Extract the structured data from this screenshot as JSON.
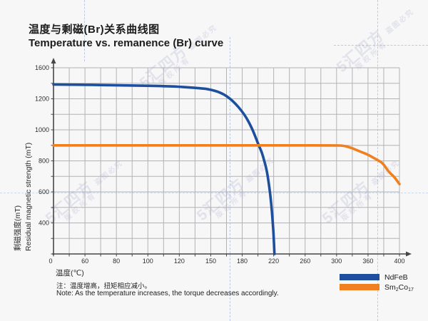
{
  "title": {
    "zh": "温度与剩磁(Br)关系曲线图",
    "en": "Temperature vs. remanence (Br) curve"
  },
  "y_axis": {
    "label_zh": "剩磁强度(mT)",
    "label_en": "Residual magnetic strength (mT)"
  },
  "x_axis": {
    "label": "温度(℃)"
  },
  "note": {
    "zh": "注：温度增高，扭矩相应减小。",
    "en": "Note: As the temperature increases, the torque decreases accordingly."
  },
  "legend": {
    "items": [
      {
        "name": "NdFeB",
        "parts": [
          {
            "t": "NdFeB",
            "sub": false
          }
        ]
      },
      {
        "name": "Sm2Co17",
        "parts": [
          {
            "t": "Sm",
            "sub": false
          },
          {
            "t": "2",
            "sub": true
          },
          {
            "t": "Co",
            "sub": false
          },
          {
            "t": "17",
            "sub": true
          }
        ]
      }
    ]
  },
  "watermark": {
    "logo": "5",
    "brand": "汇四方",
    "tail": "盗图必究",
    "line2": "版权所有"
  },
  "colors": {
    "ndfeb_blue": "#1d4f9e",
    "sm2co17_orange": "#f0801f",
    "grid": "#b3b3b5",
    "axis": "#47474a"
  },
  "chart_data": {
    "type": "line",
    "title": "温度与剩磁(Br)关系曲线图 / Temperature vs. remanence (Br) curve",
    "xlabel": "温度(℃)",
    "ylabel": "剩磁强度(mT) / Residual magnetic strength (mT)",
    "x_ticks": [
      0,
      60,
      80,
      100,
      120,
      150,
      180,
      220,
      260,
      300,
      360,
      400
    ],
    "y_ticks": [
      0,
      400,
      600,
      800,
      1000,
      1200,
      1600
    ],
    "axis_note": "tick labels are evenly spaced (non-linear stylized axes); minor gridline between each pair of labeled ticks",
    "grid": true,
    "legend_position": "bottom-right",
    "series": [
      {
        "name": "NdFeB",
        "color": "#1d4f9e",
        "points": [
          [
            0,
            1385
          ],
          [
            30,
            1383
          ],
          [
            64,
            1380
          ],
          [
            90,
            1372
          ],
          [
            114,
            1362
          ],
          [
            126,
            1350
          ],
          [
            140,
            1336
          ],
          [
            148,
            1325
          ],
          [
            160,
            1280
          ],
          [
            171,
            1190
          ],
          [
            183,
            1100
          ],
          [
            192,
            1015
          ],
          [
            198,
            940
          ],
          [
            201,
            900
          ],
          [
            205,
            855
          ],
          [
            208,
            800
          ],
          [
            211,
            745
          ],
          [
            214,
            650
          ],
          [
            217,
            525
          ],
          [
            219,
            390
          ],
          [
            220,
            230
          ],
          [
            221,
            0
          ]
        ]
      },
      {
        "name": "Sm2Co17",
        "color": "#f0801f",
        "points": [
          [
            0,
            900
          ],
          [
            80,
            900
          ],
          [
            160,
            900
          ],
          [
            240,
            900
          ],
          [
            300,
            900
          ],
          [
            314,
            898
          ],
          [
            330,
            882
          ],
          [
            345,
            860
          ],
          [
            360,
            840
          ],
          [
            372,
            805
          ],
          [
            379,
            785
          ],
          [
            386,
            730
          ],
          [
            393,
            700
          ],
          [
            400,
            650
          ]
        ]
      }
    ]
  }
}
